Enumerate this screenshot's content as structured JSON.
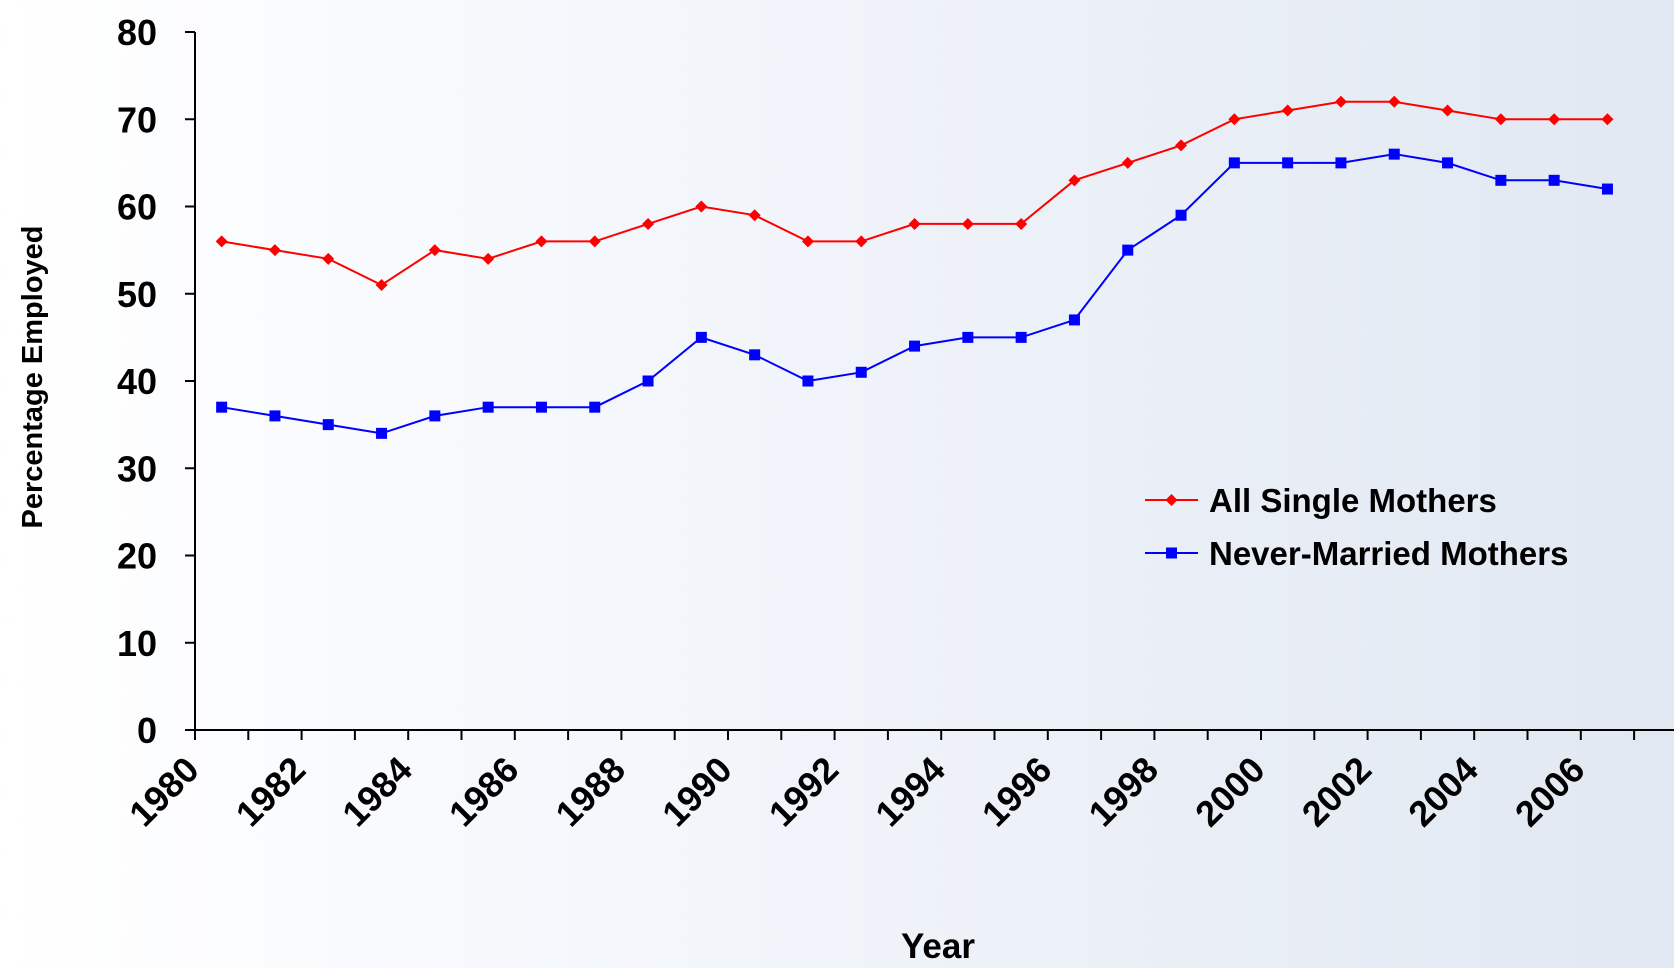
{
  "chart_data": {
    "type": "line",
    "title": "",
    "xlabel": "Year",
    "ylabel": "Percentage Employed",
    "ylim": [
      0,
      80
    ],
    "yticks": [
      0,
      10,
      20,
      30,
      40,
      50,
      60,
      70,
      80
    ],
    "x": [
      1980,
      1981,
      1982,
      1983,
      1984,
      1985,
      1986,
      1987,
      1988,
      1989,
      1990,
      1991,
      1992,
      1993,
      1994,
      1995,
      1996,
      1997,
      1998,
      1999,
      2000,
      2001,
      2002,
      2003,
      2004,
      2005,
      2006
    ],
    "xtick_labels": [
      "1980",
      "1982",
      "1984",
      "1986",
      "1988",
      "1990",
      "1992",
      "1994",
      "1996",
      "1998",
      "2000",
      "2002",
      "2004",
      "2006"
    ],
    "grid": false,
    "legend_position": "right",
    "series": [
      {
        "name": "All Single Mothers",
        "color": "#ff0000",
        "marker": "diamond",
        "values": [
          56,
          55,
          54,
          51,
          55,
          54,
          56,
          56,
          58,
          60,
          59,
          56,
          56,
          58,
          58,
          58,
          63,
          65,
          67,
          70,
          71,
          72,
          72,
          71,
          70,
          70,
          70
        ]
      },
      {
        "name": "Never-Married Mothers",
        "color": "#0000ff",
        "marker": "square",
        "values": [
          37,
          36,
          35,
          34,
          36,
          37,
          37,
          37,
          40,
          45,
          43,
          40,
          41,
          44,
          45,
          45,
          47,
          55,
          59,
          65,
          65,
          65,
          66,
          65,
          63,
          63,
          62
        ]
      }
    ]
  }
}
